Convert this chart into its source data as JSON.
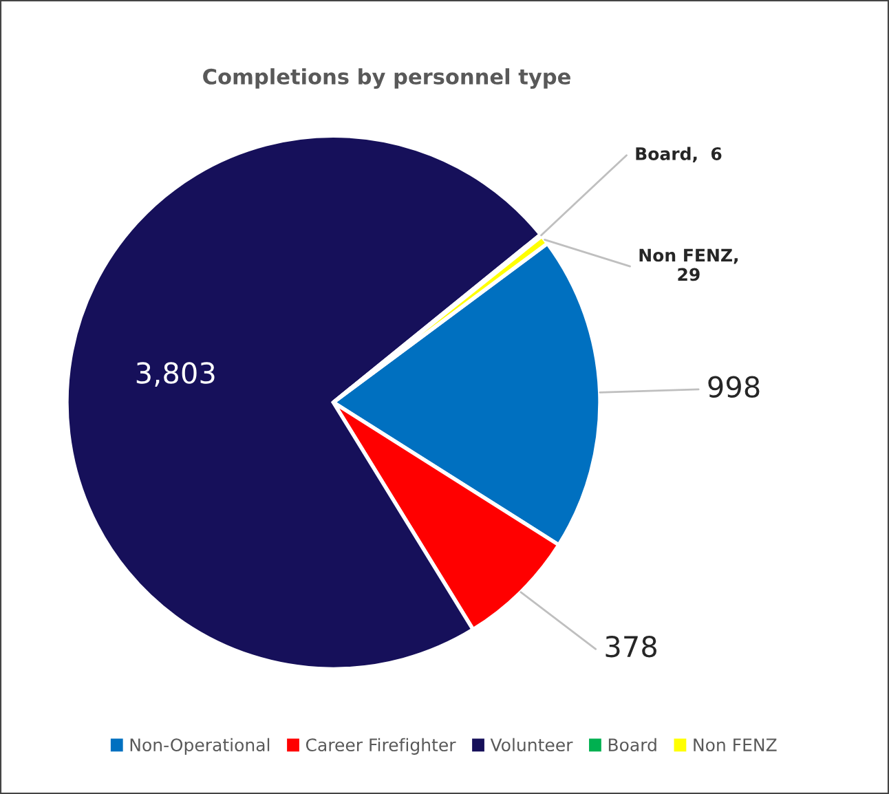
{
  "chart_data": {
    "type": "pie",
    "title": "Completions by personnel type",
    "categories": [
      "Non-Operational",
      "Career Firefighter",
      "Volunteer",
      "Board",
      "Non FENZ"
    ],
    "values": [
      998,
      378,
      3803,
      6,
      29
    ],
    "colors": [
      "#0070c0",
      "#ff0000",
      "#16105a",
      "#00b050",
      "#ffff00"
    ],
    "value_labels": [
      "998",
      "378",
      "3,803",
      "Board,  6",
      "Non FENZ,\n29"
    ],
    "legend": "bottom"
  }
}
